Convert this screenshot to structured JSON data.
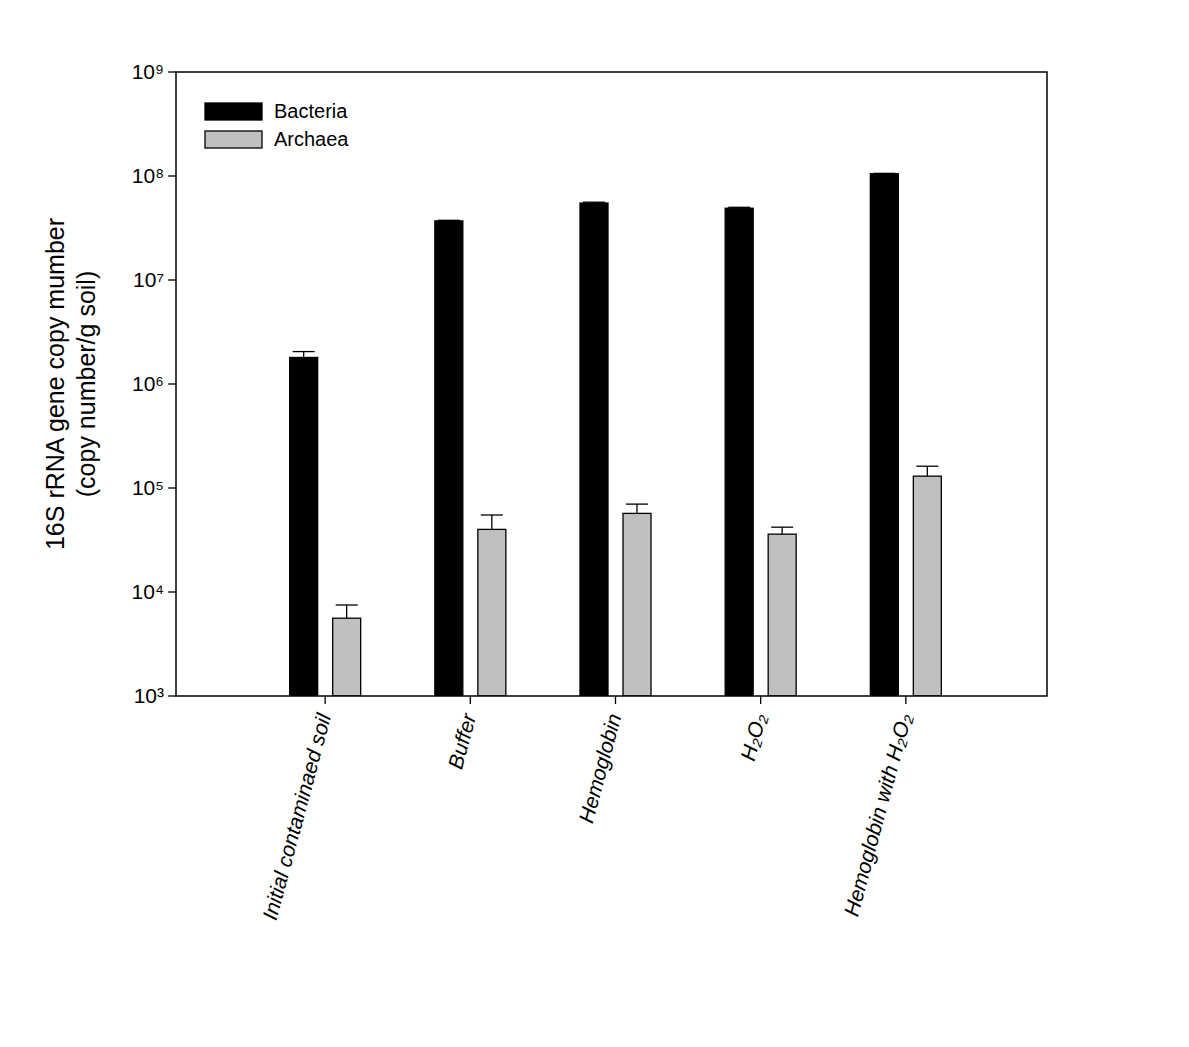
{
  "chart_data": {
    "type": "bar",
    "y_label": [
      "16S rRNA gene copy mumber",
      "(copy number/g soil)"
    ],
    "categories": [
      "Initial contaminaed soil",
      "Buffer",
      "Hemoglobin",
      "H₂O₂",
      "Hemoglobin with H₂O₂"
    ],
    "series": [
      {
        "name": "Bacteria",
        "color": "#000000",
        "values": [
          1800000,
          37000000,
          55000000,
          49000000,
          105000000
        ],
        "errors": [
          250000,
          500000,
          1000000,
          1000000,
          1000000
        ]
      },
      {
        "name": "Archaea",
        "color": "#c0c0c0",
        "values": [
          5600,
          40000,
          57000,
          36000,
          130000
        ],
        "errors": [
          1900,
          15000,
          13000,
          6000,
          32000
        ]
      }
    ],
    "log": "y",
    "ylim": [
      1000,
      1000000000
    ],
    "yticks": [
      {
        "value": 1000,
        "label": "10³"
      },
      {
        "value": 10000,
        "label": "10⁴"
      },
      {
        "value": 100000,
        "label": "10⁵"
      },
      {
        "value": 1000000,
        "label": "10⁶"
      },
      {
        "value": 10000000,
        "label": "10⁷"
      },
      {
        "value": 100000000,
        "label": "10⁸"
      },
      {
        "value": 1000000000,
        "label": "10⁹"
      }
    ],
    "legend": "top-left",
    "grid": false
  }
}
